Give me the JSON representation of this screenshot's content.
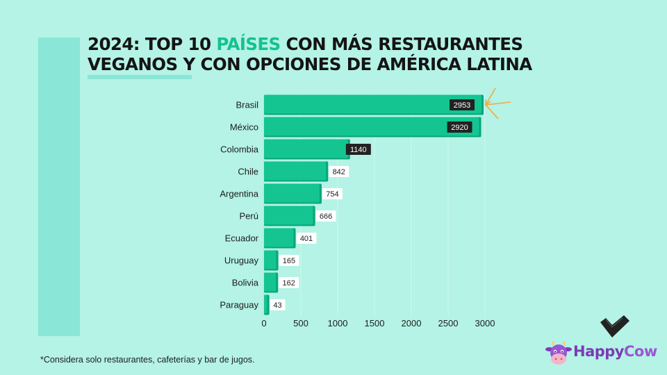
{
  "title": {
    "line1_prefix": "2024: TOP 10 ",
    "line1_highlight": "PAÍSES",
    "line1_suffix": " CON MÁS RESTAURANTES",
    "line2": "VEGANOS Y CON OPCIONES DE AMÉRICA LATINA"
  },
  "footnote": "*Considera solo restaurantes, cafeterías y bar de jugos.",
  "logo": {
    "part1": "Happy",
    "part2": "Cow"
  },
  "colors": {
    "background": "#b4f3e6",
    "bar": "#14c591",
    "bar_shadow": "#0aa57a",
    "title_highlight": "#14c28f",
    "dark_label_bg": "#222222",
    "arrow": "#f2a93b",
    "logo_purple": "#7a3bb5"
  },
  "chart_data": {
    "type": "bar",
    "orientation": "horizontal",
    "categories": [
      "Brasil",
      "México",
      "Colombia",
      "Chile",
      "Argentina",
      "Perú",
      "Ecuador",
      "Uruguay",
      "Bolivia",
      "Paraguay"
    ],
    "values": [
      2953,
      2920,
      1140,
      842,
      754,
      666,
      401,
      165,
      162,
      43
    ],
    "xticks": [
      0,
      500,
      1000,
      1500,
      2000,
      2500,
      3000
    ],
    "xlim": [
      0,
      3000
    ],
    "grid": "vertical",
    "highlighted_labels": [
      "Brasil",
      "México",
      "Colombia"
    ],
    "annotation": "arrows-pointing-at-top-bar",
    "xlabel": "",
    "ylabel": ""
  }
}
